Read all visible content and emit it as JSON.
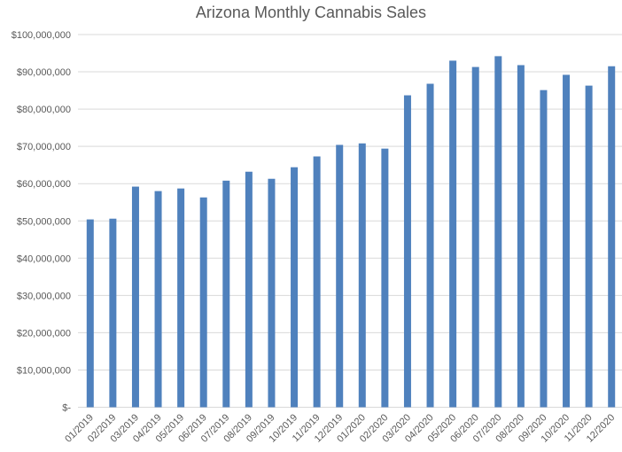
{
  "chart_data": {
    "type": "bar",
    "title": "Arizona Monthly Cannabis Sales",
    "xlabel": "",
    "ylabel": "",
    "ylim": [
      0,
      100000000
    ],
    "yticks": [
      0,
      10000000,
      20000000,
      30000000,
      40000000,
      50000000,
      60000000,
      70000000,
      80000000,
      90000000,
      100000000
    ],
    "ytick_labels": [
      "$-",
      "$10,000,000",
      "$20,000,000",
      "$30,000,000",
      "$40,000,000",
      "$50,000,000",
      "$60,000,000",
      "$70,000,000",
      "$80,000,000",
      "$90,000,000",
      "$100,000,000"
    ],
    "grid": true,
    "bar_color": "#4f81bd",
    "categories": [
      "01/2019",
      "02/2019",
      "03/2019",
      "04/2019",
      "05/2019",
      "06/2019",
      "07/2019",
      "08/2019",
      "09/2019",
      "10/2019",
      "11/2019",
      "12/2019",
      "01/2020",
      "02/2020",
      "03/2020",
      "04/2020",
      "05/2020",
      "06/2020",
      "07/2020",
      "08/2020",
      "09/2020",
      "10/2020",
      "11/2020",
      "12/2020"
    ],
    "values": [
      50400000,
      50600000,
      59200000,
      58000000,
      58700000,
      56300000,
      60800000,
      63200000,
      61300000,
      64400000,
      67300000,
      70400000,
      70800000,
      69400000,
      83700000,
      86800000,
      93000000,
      91300000,
      94200000,
      91800000,
      85100000,
      89200000,
      86300000,
      91500000
    ]
  }
}
